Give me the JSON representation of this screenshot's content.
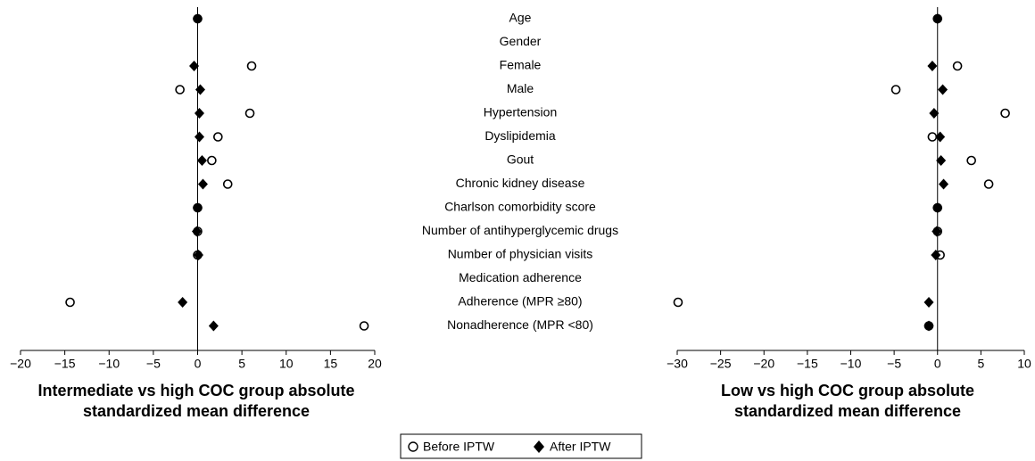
{
  "chart_data": [
    {
      "type": "scatter",
      "categories": [
        "Age",
        "Gender",
        "Female",
        "Male",
        "Hypertension",
        "Dyslipidemia",
        "Gout",
        "Chronic kidney disease",
        "Charlson comorbidity score",
        "Number of antihyperglycemic drugs",
        "Number of physician visits",
        "Medication adherence",
        "Adherence (MPR ≥80)",
        "Nonadherence (MPR <80)"
      ],
      "x_label": "Intermediate vs high COC group absolute standardized mean difference",
      "xlim": [
        -20,
        20
      ],
      "xticks": [
        {
          "value": -20,
          "label": "−20"
        },
        {
          "value": -15,
          "label": "−15"
        },
        {
          "value": -10,
          "label": "−10"
        },
        {
          "value": -5,
          "label": "−5"
        },
        0,
        5,
        10,
        15,
        20
      ],
      "series": [
        {
          "name": "Before IPTW",
          "marker": "circle",
          "color": "#000000",
          "values": [
            0,
            null,
            6.1,
            -2.0,
            5.9,
            2.3,
            1.6,
            3.4,
            0,
            0,
            0,
            null,
            -14.4,
            18.8
          ]
        },
        {
          "name": "After IPTW",
          "marker": "diamond",
          "color": "#000000",
          "values": [
            0,
            null,
            -0.4,
            0.3,
            0.2,
            0.2,
            0.5,
            0.6,
            0,
            -0.1,
            0.1,
            null,
            -1.7,
            1.8
          ]
        }
      ]
    },
    {
      "type": "scatter",
      "x_label": "Low vs high COC group absolute standardized mean difference",
      "xlim": [
        -30,
        10
      ],
      "xticks": [
        {
          "value": -30,
          "label": "−30"
        },
        {
          "value": -25,
          "label": "−25"
        },
        {
          "value": -20,
          "label": "−20"
        },
        {
          "value": -15,
          "label": "−15"
        },
        {
          "value": -10,
          "label": "−10"
        },
        {
          "value": -5,
          "label": "−5"
        },
        0,
        5,
        10
      ],
      "series": [
        {
          "marker": "circle",
          "color": "#000000",
          "values": [
            0,
            null,
            2.3,
            -4.8,
            7.8,
            -0.6,
            3.9,
            5.9,
            0,
            0,
            0.3,
            null,
            -29.9,
            -1.0
          ]
        },
        {
          "marker": "diamond",
          "color": "#000000",
          "values": [
            0,
            null,
            -0.6,
            0.6,
            -0.4,
            0.3,
            0.4,
            0.7,
            0,
            -0.1,
            -0.2,
            null,
            -1.0,
            -1.0
          ]
        }
      ]
    }
  ]
}
